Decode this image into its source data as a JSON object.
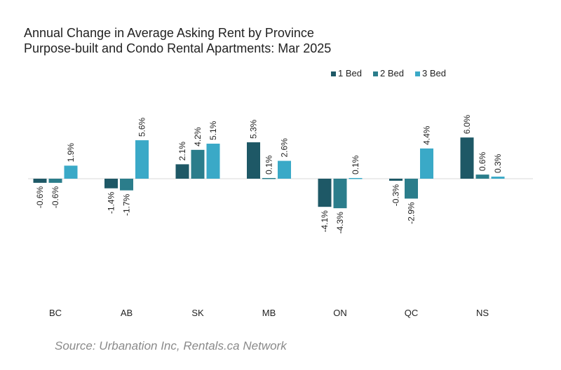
{
  "chart_data": {
    "type": "bar",
    "title": "Annual Change in Average Asking Rent by Province",
    "subtitle": "Purpose-built and Condo Rental Apartments: Mar 2025",
    "categories": [
      "BC",
      "AB",
      "SK",
      "MB",
      "ON",
      "QC",
      "NS"
    ],
    "series": [
      {
        "name": "1 Bed",
        "color": "#1e5866",
        "values": [
          -0.6,
          -1.4,
          2.1,
          5.3,
          -4.1,
          -0.3,
          6.0
        ]
      },
      {
        "name": "2 Bed",
        "color": "#2b7d8b",
        "values": [
          -0.6,
          -1.7,
          4.2,
          0.1,
          -4.3,
          -2.9,
          0.6
        ]
      },
      {
        "name": "3 Bed",
        "color": "#3aa9c7",
        "values": [
          1.9,
          5.6,
          5.1,
          2.6,
          0.1,
          4.4,
          0.3
        ]
      }
    ],
    "value_suffix": "%",
    "ylim": [
      -7,
      10
    ],
    "grid": false,
    "legend": "top-right",
    "xlabel": "",
    "ylabel": ""
  },
  "source": "Source: Urbanation Inc, Rentals.ca Network"
}
